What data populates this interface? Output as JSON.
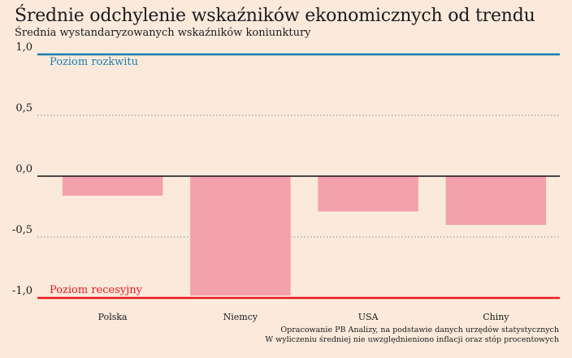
{
  "title": "Średnie odchylenie wskaźników ekonomicznych od trendu",
  "subtitle": "Średnia wystandaryzowanych wskaźników koniunktury",
  "footer": {
    "line1": "Opracowanie PB Analizy, na podstawie danych urzędów statystycznych",
    "line2": "W wyliczeniu średniej nie uwzględnieniono inflacji oraz stóp procentowych"
  },
  "colors": {
    "bar": "#f4a0ad",
    "boom_line": "#1a7fb0",
    "recession_line": "#e8161b",
    "zero_line": "#111111",
    "grid": "#8a8a8a",
    "background": "#fbeadc"
  },
  "chart_data": {
    "type": "bar",
    "title": "Średnie odchylenie wskaźników ekonomicznych od trendu",
    "subtitle": "Średnia wystandaryzowanych wskaźników koniunktury",
    "categories": [
      "Polska",
      "Niemcy",
      "USA",
      "Chiny"
    ],
    "values": [
      -0.16,
      -0.98,
      -0.29,
      -0.4
    ],
    "ylim": [
      -1.0,
      1.0
    ],
    "yticks": [
      1.0,
      0.5,
      0.0,
      -0.5,
      -1.0
    ],
    "ytick_labels": [
      "1,0",
      "0,5",
      "0,0",
      "-0,5",
      "-1,0"
    ],
    "grid": true,
    "reference_lines": [
      {
        "value": 1.0,
        "label": "Poziom rozkwitu",
        "color": "#1a7fb0"
      },
      {
        "value": -1.0,
        "label": "Poziom recesyjny",
        "color": "#e8161b"
      }
    ]
  }
}
